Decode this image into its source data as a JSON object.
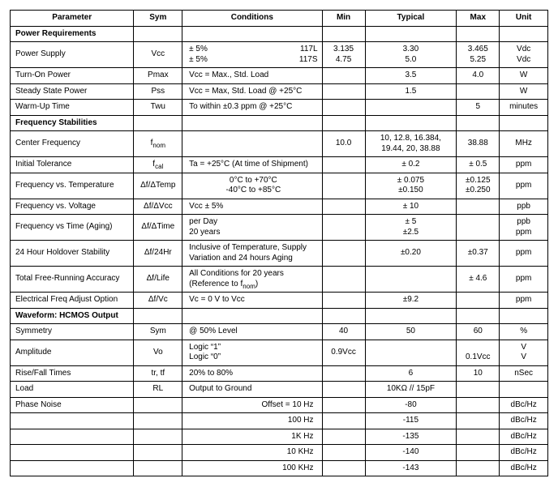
{
  "headers": {
    "parameter": "Parameter",
    "sym": "Sym",
    "conditions": "Conditions",
    "min": "Min",
    "typical": "Typical",
    "max": "Max",
    "unit": "Unit"
  },
  "sections": {
    "power": "Power Requirements",
    "freq": "Frequency Stabilities",
    "wave": "Waveform: HCMOS Output"
  },
  "rows": {
    "power_supply": {
      "param": "Power Supply",
      "sym": "Vcc",
      "cond_left": "± 5%\n± 5%",
      "cond_right": "117L\n117S",
      "min": "3.135\n4.75",
      "typ": "3.30\n5.0",
      "max": "3.465\n5.25",
      "unit": "Vdc\nVdc"
    },
    "turn_on": {
      "param": "Turn-On Power",
      "sym": "Pmax",
      "cond": "Vcc = Max.,  Std. Load",
      "min": "",
      "typ": "3.5",
      "max": "4.0",
      "unit": "W"
    },
    "steady": {
      "param": "Steady State Power",
      "sym": "Pss",
      "cond": "Vcc = Max,  Std. Load @ +25°C",
      "min": "",
      "typ": "1.5",
      "max": "",
      "unit": "W"
    },
    "warmup": {
      "param": "Warm-Up Time",
      "sym": "Twu",
      "cond": "To within ±0.3 ppm @ +25°C",
      "min": "",
      "typ": "",
      "max": "5",
      "unit": "minutes"
    },
    "center_freq": {
      "param": "Center Frequency",
      "sym_html": "f<sub>nom</sub>",
      "cond": "",
      "min": "10.0",
      "typ": "10, 12.8, 16.384,\n19.44, 20, 38.88",
      "max": "38.88",
      "unit": "MHz"
    },
    "init_tol": {
      "param": "Initial Tolerance",
      "sym_html": "f<sub>cal</sub>",
      "cond": "Ta = +25°C (At time of Shipment)",
      "min": "",
      "typ": "± 0.2",
      "max": "± 0.5",
      "unit": "ppm"
    },
    "freq_temp": {
      "param": "Frequency vs. Temperature",
      "sym": "Δf/ΔTemp",
      "cond": "0°C to +70°C\n-40°C to +85°C",
      "min": "",
      "typ": "± 0.075\n±0.150",
      "max": "±0.125\n±0.250",
      "unit": "ppm"
    },
    "freq_volt": {
      "param": "Frequency vs. Voltage",
      "sym": "Δf/ΔVcc",
      "cond": "Vcc ± 5%",
      "min": "",
      "typ": "± 10",
      "max": "",
      "unit": "ppb"
    },
    "freq_time": {
      "param": "Frequency vs Time (Aging)",
      "sym": "Δf/ΔTime",
      "cond": "per Day\n20 years",
      "min": "",
      "typ": "± 5\n±2.5",
      "max": "",
      "unit": "ppb\nppm"
    },
    "holdover": {
      "param": "24 Hour Holdover Stability",
      "sym": "Δf/24Hr",
      "cond": "Inclusive of Temperature, Supply Variation and 24 hours Aging",
      "min": "",
      "typ": "±0.20",
      "max": "±0.37",
      "unit": "ppm"
    },
    "total_free": {
      "param": "Total Free-Running Accuracy",
      "sym": "Δf/Life",
      "cond_html": "All Conditions for 20 years<br>(Reference to f<sub>nom</sub>)",
      "min": "",
      "typ": "",
      "max": "± 4.6",
      "unit": "ppm"
    },
    "efc": {
      "param": "Electrical Freq Adjust Option",
      "sym": "Δf/Vc",
      "cond": "Vc = 0 V to Vcc",
      "min": "",
      "typ": "±9.2",
      "max": "",
      "unit": "ppm"
    },
    "symmetry": {
      "param": "Symmetry",
      "sym": "Sym",
      "cond": "@ 50% Level",
      "min": "40",
      "typ": "50",
      "max": "60",
      "unit": "%"
    },
    "amplitude": {
      "param": "Amplitude",
      "sym": "Vo",
      "cond": "Logic “1”\nLogic “0”",
      "min": "0.9Vcc",
      "typ": "",
      "max": "\n0.1Vcc",
      "unit": "V\nV"
    },
    "rise_fall": {
      "param": "Rise/Fall Times",
      "sym": "tr, tf",
      "cond": "20% to 80%",
      "min": "",
      "typ": "6",
      "max": "10",
      "unit": "nSec"
    },
    "load": {
      "param": "Load",
      "sym": "RL",
      "cond": "Output to Ground",
      "min": "",
      "typ": "10KΩ // 15pF",
      "max": "",
      "unit": ""
    },
    "phase_noise": {
      "param": "Phase Noise",
      "sym": "",
      "cond": "Offset = 10 Hz",
      "min": "",
      "typ": "-80",
      "max": "",
      "unit": "dBc/Hz"
    },
    "pn100": {
      "cond": "100 Hz",
      "typ": "-115",
      "unit": "dBc/Hz"
    },
    "pn1k": {
      "cond": "1K Hz",
      "typ": "-135",
      "unit": "dBc/Hz"
    },
    "pn10k": {
      "cond": "10 KHz",
      "typ": "-140",
      "unit": "dBc/Hz"
    },
    "pn100k": {
      "cond": "100 KHz",
      "typ": "-143",
      "unit": "dBc/Hz"
    }
  }
}
